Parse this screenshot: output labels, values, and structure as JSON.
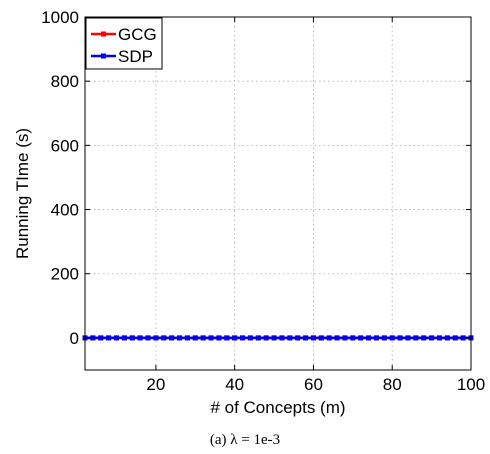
{
  "chart_data": {
    "type": "line",
    "title": "",
    "xlabel": "# of Concepts (m)",
    "ylabel": "Running TIme (s)",
    "xlim": [
      2,
      100
    ],
    "ylim": [
      -100,
      1000
    ],
    "xticks": [
      20,
      40,
      60,
      80,
      100
    ],
    "yticks": [
      0,
      200,
      400,
      600,
      800,
      1000
    ],
    "grid": true,
    "legend_position": "top-left",
    "x": [
      2,
      4,
      6,
      8,
      10,
      12,
      14,
      16,
      18,
      20,
      22,
      24,
      26,
      28,
      30,
      32,
      34,
      36,
      38,
      40,
      42,
      44,
      46,
      48,
      50,
      52,
      54,
      56,
      58,
      60,
      62,
      64,
      66,
      68,
      70,
      72,
      74,
      76,
      78,
      80,
      82,
      84,
      86,
      88,
      90,
      92,
      94,
      96,
      98,
      100
    ],
    "series": [
      {
        "name": "GCG",
        "color": "#ff0000",
        "values": [
          0,
          0,
          0,
          0,
          0,
          0,
          0,
          0,
          0,
          0,
          0,
          0,
          0,
          0,
          0,
          0,
          0,
          0,
          0,
          0,
          0,
          0,
          0,
          0,
          0,
          0,
          0,
          0,
          0,
          0,
          0,
          0,
          0,
          0,
          0,
          0,
          0,
          0,
          0,
          0,
          0,
          0,
          0,
          0,
          0,
          0,
          0,
          0,
          0,
          0
        ]
      },
      {
        "name": "SDP",
        "color": "#0000ee",
        "values": [
          0,
          0,
          0,
          0,
          0,
          0,
          0,
          0,
          0,
          0,
          0,
          0,
          0,
          0,
          0,
          0,
          0,
          0,
          0,
          0,
          0,
          0,
          0,
          0,
          0,
          0,
          0,
          0,
          0,
          0,
          0,
          0,
          0,
          0,
          0,
          0,
          0,
          0,
          0,
          0,
          0,
          0,
          0,
          0,
          0,
          0,
          0,
          0,
          0,
          0
        ]
      }
    ]
  },
  "caption": "(a) λ = 1e-3"
}
